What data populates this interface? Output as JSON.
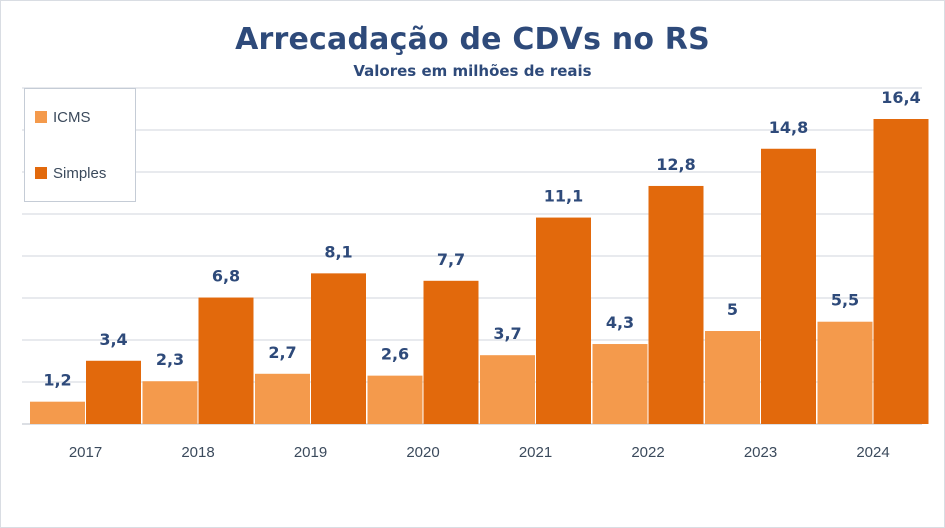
{
  "chart_data": {
    "type": "bar",
    "title": "Arrecadação de CDVs no RS",
    "subtitle": "Valores em milhões de reais",
    "categories": [
      "2017",
      "2018",
      "2019",
      "2020",
      "2021",
      "2022",
      "2023",
      "2024"
    ],
    "series": [
      {
        "name": "ICMS",
        "color": "#f49a4c",
        "values": [
          1.2,
          2.3,
          2.7,
          2.6,
          3.7,
          4.3,
          5,
          5.5
        ],
        "labels": [
          "1,2",
          "2,3",
          "2,7",
          "2,6",
          "3,7",
          "4,3",
          "5",
          "5,5"
        ]
      },
      {
        "name": "Simples",
        "color": "#e2690c",
        "values": [
          3.4,
          6.8,
          8.1,
          7.7,
          11.1,
          12.8,
          14.8,
          16.4
        ],
        "labels": [
          "3,4",
          "6,8",
          "8,1",
          "7,7",
          "11,1",
          "12,8",
          "14,8",
          "16,4"
        ]
      }
    ],
    "xlabel": "",
    "ylabel": "",
    "ylim": [
      0,
      16.4
    ],
    "grid": true,
    "legend_position": "top-left"
  },
  "colors": {
    "title": "#2e4a7a",
    "data_label": "#2e4a7a",
    "tick_label": "#3b4a5c",
    "gridline": "#d0d5dc"
  }
}
